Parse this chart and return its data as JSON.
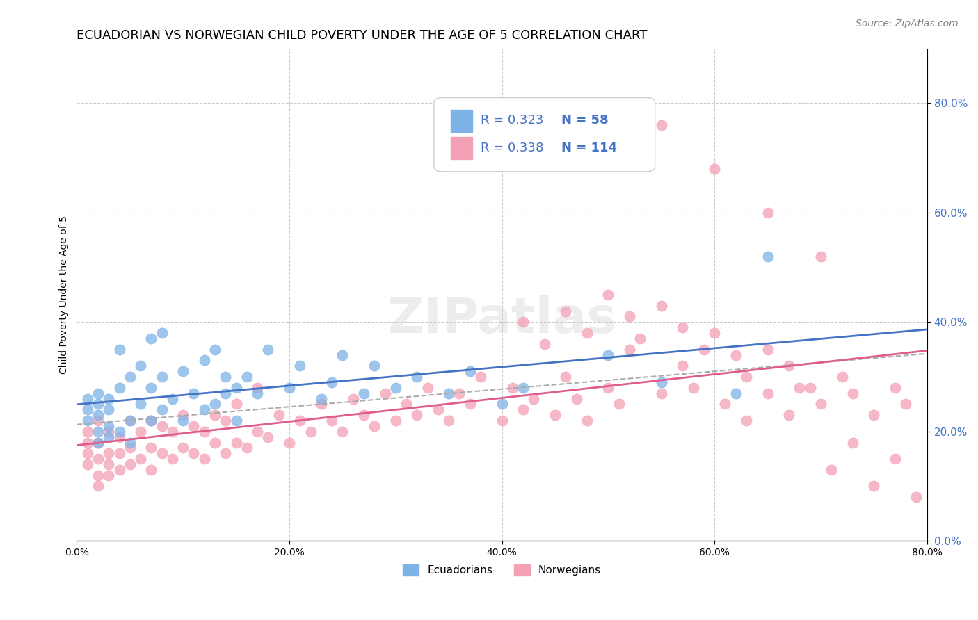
{
  "title": "ECUADORIAN VS NORWEGIAN CHILD POVERTY UNDER THE AGE OF 5 CORRELATION CHART",
  "source": "Source: ZipAtlas.com",
  "ylabel": "Child Poverty Under the Age of 5",
  "xlim": [
    0,
    0.8
  ],
  "ylim": [
    0,
    0.9
  ],
  "x_ticks": [
    0.0,
    0.2,
    0.4,
    0.6,
    0.8
  ],
  "y_ticks_left": [],
  "y_ticks_right": [
    0.0,
    0.2,
    0.4,
    0.6,
    0.8
  ],
  "ecuadorian_R": "0.323",
  "ecuadorian_N": "58",
  "norwegian_R": "0.338",
  "norwegian_N": "114",
  "ecu_color": "#7eb3e8",
  "nor_color": "#f4a0b5",
  "ecu_line_color": "#4472c4",
  "nor_line_color": "#e05c8c",
  "legend_text_color": "#4472c4",
  "title_fontsize": 13,
  "source_fontsize": 10,
  "watermark": "ZIPatlas",
  "background_color": "#ffffff",
  "ecuadorian_x": [
    0.01,
    0.01,
    0.01,
    0.02,
    0.02,
    0.02,
    0.02,
    0.02,
    0.03,
    0.03,
    0.03,
    0.03,
    0.04,
    0.04,
    0.04,
    0.05,
    0.05,
    0.05,
    0.06,
    0.06,
    0.07,
    0.07,
    0.07,
    0.08,
    0.08,
    0.08,
    0.09,
    0.1,
    0.1,
    0.11,
    0.12,
    0.12,
    0.13,
    0.13,
    0.14,
    0.14,
    0.15,
    0.15,
    0.16,
    0.17,
    0.18,
    0.2,
    0.21,
    0.23,
    0.24,
    0.25,
    0.27,
    0.28,
    0.3,
    0.32,
    0.35,
    0.37,
    0.4,
    0.42,
    0.5,
    0.55,
    0.62,
    0.65
  ],
  "ecuadorian_y": [
    0.22,
    0.24,
    0.26,
    0.18,
    0.2,
    0.23,
    0.25,
    0.27,
    0.19,
    0.21,
    0.24,
    0.26,
    0.2,
    0.28,
    0.35,
    0.18,
    0.22,
    0.3,
    0.25,
    0.32,
    0.22,
    0.28,
    0.37,
    0.24,
    0.3,
    0.38,
    0.26,
    0.22,
    0.31,
    0.27,
    0.24,
    0.33,
    0.25,
    0.35,
    0.27,
    0.3,
    0.22,
    0.28,
    0.3,
    0.27,
    0.35,
    0.28,
    0.32,
    0.26,
    0.29,
    0.34,
    0.27,
    0.32,
    0.28,
    0.3,
    0.27,
    0.31,
    0.25,
    0.28,
    0.34,
    0.29,
    0.27,
    0.52
  ],
  "norwegian_x": [
    0.01,
    0.01,
    0.01,
    0.01,
    0.02,
    0.02,
    0.02,
    0.02,
    0.02,
    0.03,
    0.03,
    0.03,
    0.03,
    0.04,
    0.04,
    0.04,
    0.05,
    0.05,
    0.05,
    0.06,
    0.06,
    0.07,
    0.07,
    0.07,
    0.08,
    0.08,
    0.09,
    0.09,
    0.1,
    0.1,
    0.11,
    0.11,
    0.12,
    0.12,
    0.13,
    0.13,
    0.14,
    0.14,
    0.15,
    0.15,
    0.16,
    0.17,
    0.17,
    0.18,
    0.19,
    0.2,
    0.21,
    0.22,
    0.23,
    0.24,
    0.25,
    0.26,
    0.27,
    0.28,
    0.29,
    0.3,
    0.31,
    0.32,
    0.33,
    0.34,
    0.35,
    0.36,
    0.37,
    0.38,
    0.4,
    0.41,
    0.42,
    0.43,
    0.45,
    0.46,
    0.47,
    0.48,
    0.5,
    0.51,
    0.52,
    0.55,
    0.57,
    0.58,
    0.6,
    0.62,
    0.63,
    0.65,
    0.67,
    0.68,
    0.7,
    0.72,
    0.73,
    0.75,
    0.77,
    0.78,
    0.42,
    0.44,
    0.46,
    0.48,
    0.5,
    0.52,
    0.53,
    0.55,
    0.57,
    0.59,
    0.61,
    0.63,
    0.65,
    0.67,
    0.69,
    0.71,
    0.73,
    0.75,
    0.77,
    0.79,
    0.55,
    0.6,
    0.65,
    0.7
  ],
  "norwegian_y": [
    0.14,
    0.16,
    0.18,
    0.2,
    0.1,
    0.12,
    0.15,
    0.18,
    0.22,
    0.12,
    0.14,
    0.16,
    0.2,
    0.13,
    0.16,
    0.19,
    0.14,
    0.17,
    0.22,
    0.15,
    0.2,
    0.13,
    0.17,
    0.22,
    0.16,
    0.21,
    0.15,
    0.2,
    0.17,
    0.23,
    0.16,
    0.21,
    0.15,
    0.2,
    0.18,
    0.23,
    0.16,
    0.22,
    0.18,
    0.25,
    0.17,
    0.2,
    0.28,
    0.19,
    0.23,
    0.18,
    0.22,
    0.2,
    0.25,
    0.22,
    0.2,
    0.26,
    0.23,
    0.21,
    0.27,
    0.22,
    0.25,
    0.23,
    0.28,
    0.24,
    0.22,
    0.27,
    0.25,
    0.3,
    0.22,
    0.28,
    0.24,
    0.26,
    0.23,
    0.3,
    0.26,
    0.22,
    0.28,
    0.25,
    0.35,
    0.27,
    0.32,
    0.28,
    0.38,
    0.34,
    0.3,
    0.35,
    0.32,
    0.28,
    0.25,
    0.3,
    0.27,
    0.23,
    0.28,
    0.25,
    0.4,
    0.36,
    0.42,
    0.38,
    0.45,
    0.41,
    0.37,
    0.43,
    0.39,
    0.35,
    0.25,
    0.22,
    0.27,
    0.23,
    0.28,
    0.13,
    0.18,
    0.1,
    0.15,
    0.08,
    0.76,
    0.68,
    0.6,
    0.52
  ]
}
